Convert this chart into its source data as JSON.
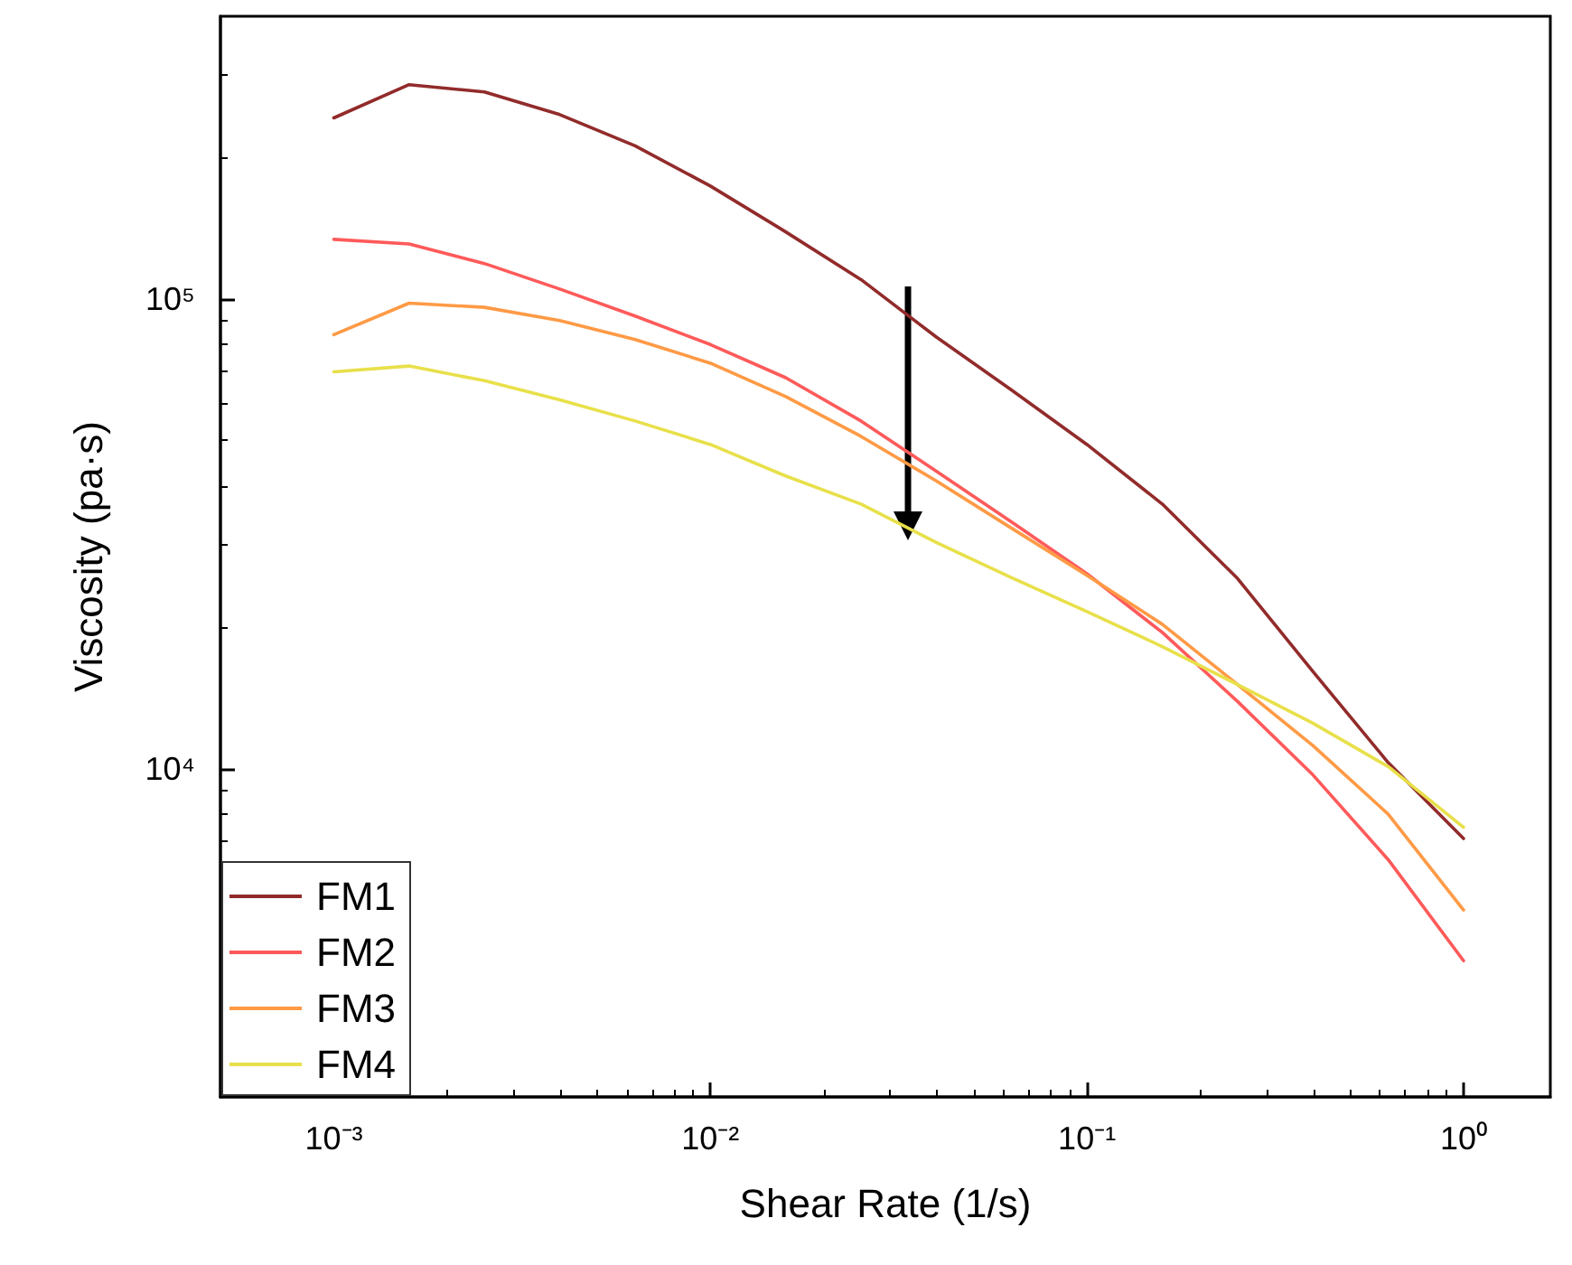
{
  "chart_data": {
    "type": "line",
    "xlabel": "Shear Rate (1/s)",
    "ylabel": "Viscosity (pa·s)",
    "x": [
      0.001,
      0.001585,
      0.002512,
      0.003981,
      0.00631,
      0.01,
      0.01585,
      0.02512,
      0.03981,
      0.0631,
      0.1,
      0.1585,
      0.2512,
      0.3981,
      0.631,
      1
    ],
    "series": [
      {
        "name": "FM1",
        "color": "#922b2b",
        "values": [
          243000,
          286000,
          276000,
          247000,
          212000,
          174000,
          139000,
          110000,
          83000,
          64000,
          49000,
          36600,
          25400,
          16100,
          10300,
          7100
        ]
      },
      {
        "name": "FM2",
        "color": "#ff5a5a",
        "values": [
          134000,
          131000,
          119000,
          105000,
          92000,
          80000,
          68000,
          55000,
          43000,
          33500,
          26000,
          19500,
          13900,
          9700,
          6400,
          3900
        ]
      },
      {
        "name": "FM3",
        "color": "#ff9a45",
        "values": [
          84000,
          98000,
          96000,
          90000,
          82000,
          73000,
          62000,
          51000,
          41000,
          32500,
          25800,
          20300,
          15100,
          11200,
          8000,
          5000
        ]
      },
      {
        "name": "FM4",
        "color": "#e8e04a",
        "values": [
          70000,
          72000,
          67000,
          61000,
          55000,
          49000,
          42000,
          36600,
          30300,
          25500,
          21600,
          18200,
          15100,
          12500,
          10100,
          7500
        ]
      }
    ],
    "log": "xy",
    "xlim": [
      0.0005,
      1.7
    ],
    "ylim": [
      2000,
      400000
    ],
    "xticks": [
      {
        "value": 0.001,
        "label": "10⁻³"
      },
      {
        "value": 0.01,
        "label": "10⁻²"
      },
      {
        "value": 0.1,
        "label": "10⁻¹"
      },
      {
        "value": 1,
        "label": "10⁰"
      }
    ],
    "yticks": [
      {
        "value": 10000,
        "label": "10⁴"
      },
      {
        "value": 100000,
        "label": "10⁵"
      }
    ],
    "grid": false,
    "legend": "bottom left",
    "marker": "none",
    "line_style": "solid"
  }
}
